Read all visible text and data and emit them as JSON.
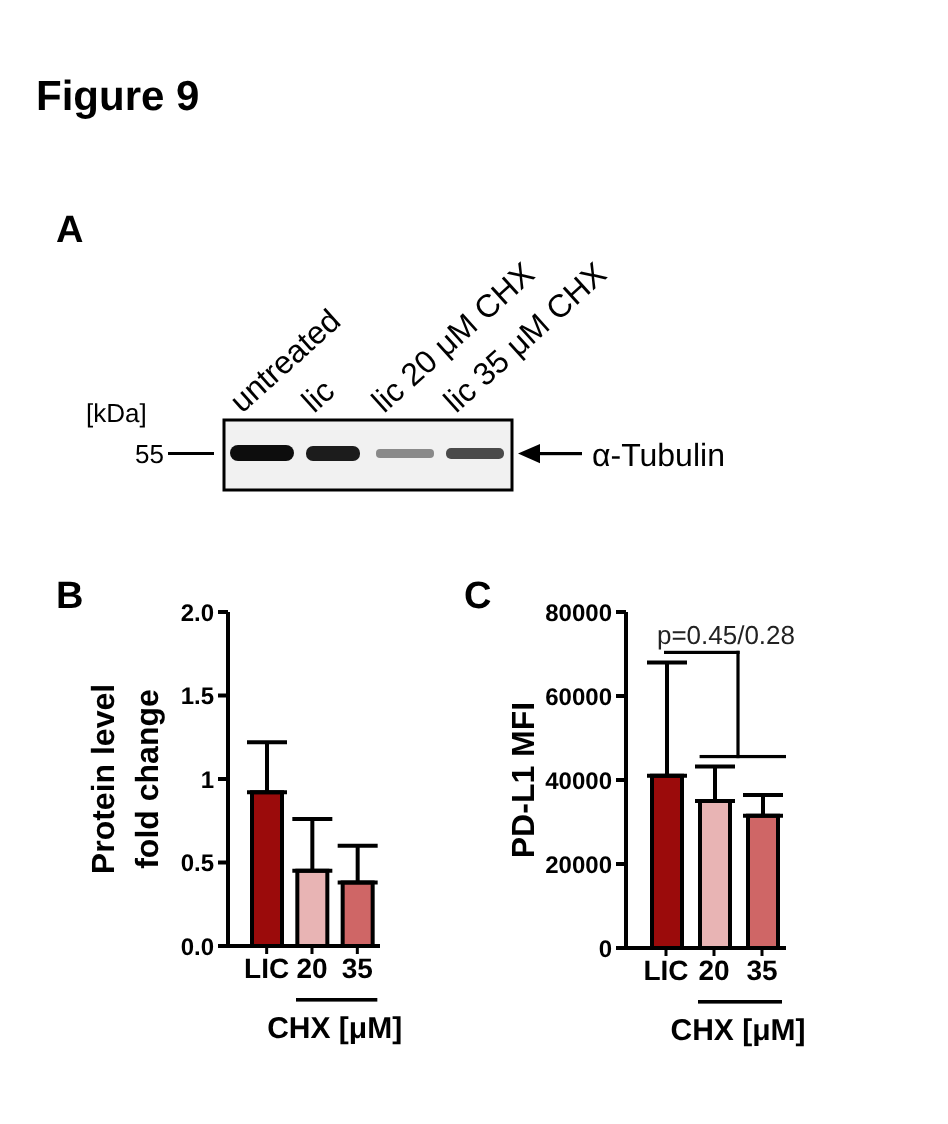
{
  "chart_data": [
    {
      "type": "other",
      "title": "Figure 9",
      "subtitle": "A",
      "annotations": [
        "[kDa]",
        "55",
        "α-Tubulin",
        "untreated",
        "lic",
        "lic 20 μM CHX",
        "lic 35 μM CHX"
      ]
    },
    {
      "type": "bar",
      "title": "B",
      "ylabel": "Protein level fold change",
      "xlabel": "CHX [μM]",
      "categories": [
        "LIC",
        "20",
        "35"
      ],
      "values": [
        0.92,
        0.45,
        0.38
      ],
      "colors": [
        "#9b0b0b",
        "#e8b4b4",
        "#cf6666"
      ],
      "errors": [
        [
          0.92,
          1.22
        ],
        [
          0.45,
          0.76
        ],
        [
          0.38,
          0.6
        ]
      ],
      "ylim": [
        0,
        2
      ],
      "yticks": [
        {
          "value": 0,
          "label": "0.0"
        },
        0.5,
        1,
        1.5,
        {
          "value": 2,
          "label": "2.0"
        }
      ]
    },
    {
      "type": "bar",
      "title": "C",
      "ylabel": "PD-L1 MFI",
      "xlabel": "CHX [μM]",
      "categories": [
        "LIC",
        "20",
        "35"
      ],
      "values": [
        41000,
        35000,
        31500
      ],
      "colors": [
        "#9b0b0b",
        "#e8b4b4",
        "#cf6666"
      ],
      "errors": [
        [
          41000,
          68000
        ],
        [
          35000,
          43200
        ],
        [
          31500,
          36400
        ]
      ],
      "ylim": [
        0,
        80000
      ],
      "yticks": [
        0,
        20000,
        40000,
        60000,
        80000
      ],
      "annotations": [
        "p=0.45/0.28"
      ]
    }
  ]
}
